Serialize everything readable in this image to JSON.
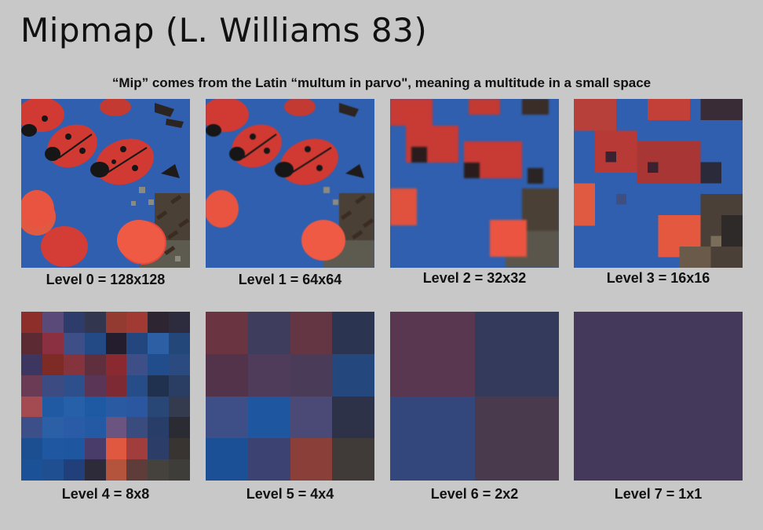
{
  "title": "Mipmap (L. Williams 83)",
  "subtitle": "“Mip” comes from the Latin “multum in parvo\", meaning a multitude in a small space",
  "levels": [
    {
      "label": "Level 0 = 128x128"
    },
    {
      "label": "Level 1 = 64x64"
    },
    {
      "label": "Level 2 = 32x32"
    },
    {
      "label": "Level 3 = 16x16"
    },
    {
      "label": "Level 4 = 8x8"
    },
    {
      "label": "Level 5 = 4x4"
    },
    {
      "label": "Level 6 = 2x2"
    },
    {
      "label": "Level 7 = 1x1"
    }
  ],
  "colors": {
    "background": "#c8c8c8",
    "surface_blue": "#2f5fae",
    "ladybug_red": "#d8413a",
    "candy_orange": "#ee5a45"
  },
  "level4_cells": [
    "#8e2e2b",
    "#5a4a7a",
    "#2d3c6a",
    "#33364f",
    "#933b31",
    "#a13a33",
    "#2d2532",
    "#2d2c3e",
    "#5b2a33",
    "#8a3040",
    "#3d4f86",
    "#234a84",
    "#231d2e",
    "#24467e",
    "#2c5fa3",
    "#234778",
    "#3d3660",
    "#7e2a25",
    "#85333d",
    "#5f2f3d",
    "#8a2a30",
    "#3d4f86",
    "#224d8c",
    "#2a4a80",
    "#6b3a55",
    "#3c4c83",
    "#2d4f8c",
    "#5a3556",
    "#7d2a35",
    "#264d88",
    "#20304f",
    "#2a3e63",
    "#a44b52",
    "#1f5aa3",
    "#2560a9",
    "#1e59a4",
    "#2a5ba2",
    "#2a57a0",
    "#284676",
    "#353b4f",
    "#3c4f88",
    "#2b5fa6",
    "#2a5ba6",
    "#235aa3",
    "#6b5480",
    "#3a4c7e",
    "#283e69",
    "#2b2c33",
    "#1c4f92",
    "#1f57a0",
    "#1f56a0",
    "#4a3c6a",
    "#e0583f",
    "#a13e3d",
    "#2c3d68",
    "#383432",
    "#1b5297",
    "#1f4f91",
    "#213f7a",
    "#2d2a3a",
    "#b5543d",
    "#5e3c3a",
    "#45423e",
    "#3f3d3a"
  ],
  "level5_cells": [
    "#6a3540",
    "#3f3d5e",
    "#643643",
    "#2b3552",
    "#53334a",
    "#4f3c5b",
    "#4a3b58",
    "#24477e",
    "#3d4f86",
    "#1e57a0",
    "#4b4a76",
    "#2d3248",
    "#1b5097",
    "#3c4372",
    "#8a4038",
    "#403a38"
  ],
  "level6_cells": [
    "#5a3750",
    "#343a5b",
    "#34477c",
    "#4a3a4e"
  ],
  "level7_cells": [
    "#44395a"
  ]
}
